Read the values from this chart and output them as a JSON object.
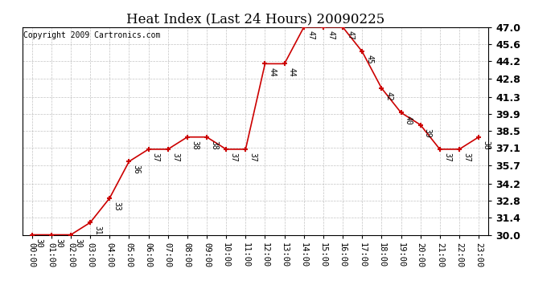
{
  "title": "Heat Index (Last 24 Hours) 20090225",
  "copyright": "Copyright 2009 Cartronics.com",
  "x_labels": [
    "00:00",
    "01:00",
    "02:00",
    "03:00",
    "04:00",
    "05:00",
    "06:00",
    "07:00",
    "08:00",
    "09:00",
    "10:00",
    "11:00",
    "12:00",
    "13:00",
    "14:00",
    "15:00",
    "16:00",
    "17:00",
    "18:00",
    "19:00",
    "20:00",
    "21:00",
    "22:00",
    "23:00"
  ],
  "hours": [
    0,
    1,
    2,
    3,
    4,
    5,
    6,
    7,
    8,
    9,
    10,
    11,
    12,
    13,
    14,
    15,
    16,
    17,
    18,
    19,
    20,
    21,
    22,
    23
  ],
  "values": [
    30,
    30,
    30,
    31,
    33,
    36,
    37,
    37,
    38,
    38,
    37,
    37,
    44,
    44,
    47,
    47,
    47,
    45,
    42,
    40,
    39,
    37,
    37,
    38
  ],
  "ylim_min": 30.0,
  "ylim_max": 47.0,
  "yticks": [
    30.0,
    31.4,
    32.8,
    34.2,
    35.7,
    37.1,
    38.5,
    39.9,
    41.3,
    42.8,
    44.2,
    45.6,
    47.0
  ],
  "line_color": "#cc0000",
  "marker_color": "#cc0000",
  "bg_color": "#ffffff",
  "grid_color": "#aaaaaa",
  "title_fontsize": 12,
  "copyright_fontsize": 7,
  "label_fontsize": 7,
  "ytick_fontsize": 9,
  "xtick_fontsize": 7.5
}
